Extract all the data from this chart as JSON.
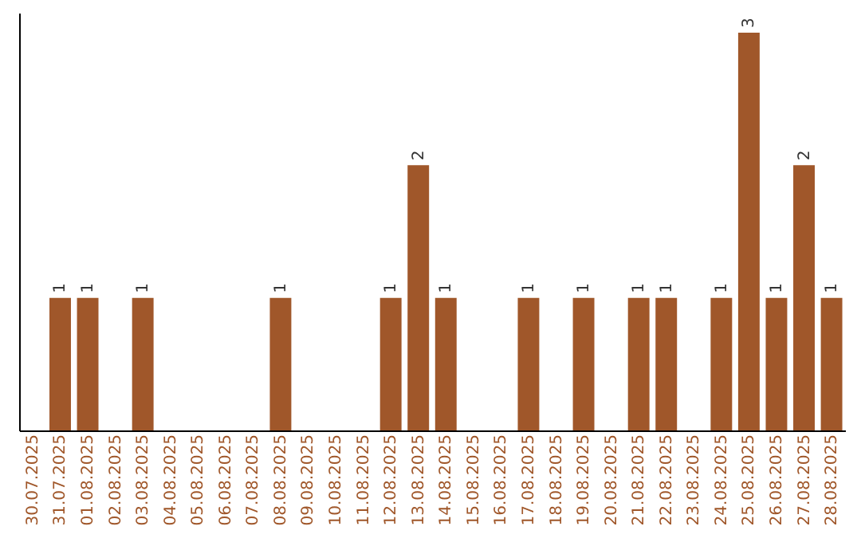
{
  "chart_data": {
    "type": "bar",
    "categories": [
      "30.07.2025",
      "31.07.2025",
      "01.08.2025",
      "02.08.2025",
      "03.08.2025",
      "04.08.2025",
      "05.08.2025",
      "06.08.2025",
      "07.08.2025",
      "08.08.2025",
      "09.08.2025",
      "10.08.2025",
      "11.08.2025",
      "12.08.2025",
      "13.08.2025",
      "14.08.2025",
      "15.08.2025",
      "16.08.2025",
      "17.08.2025",
      "18.08.2025",
      "19.08.2025",
      "20.08.2025",
      "21.08.2025",
      "22.08.2025",
      "23.08.2025",
      "24.08.2025",
      "25.08.2025",
      "26.08.2025",
      "27.08.2025",
      "28.08.2025"
    ],
    "values": [
      0,
      1,
      1,
      0,
      1,
      0,
      0,
      0,
      0,
      1,
      0,
      0,
      0,
      1,
      2,
      1,
      0,
      0,
      1,
      0,
      1,
      0,
      1,
      1,
      0,
      1,
      3,
      1,
      2,
      1
    ],
    "value_labels": [
      null,
      "1",
      "1",
      null,
      "1",
      null,
      null,
      null,
      null,
      "1",
      null,
      null,
      null,
      "1",
      "2",
      "1",
      null,
      null,
      "1",
      null,
      "1",
      null,
      "1",
      "1",
      null,
      "1",
      "3",
      "1",
      "2",
      "1"
    ],
    "color": "#a0572a",
    "ylim": [
      0,
      3.15
    ],
    "tick_labels": "x",
    "grid": false
  }
}
